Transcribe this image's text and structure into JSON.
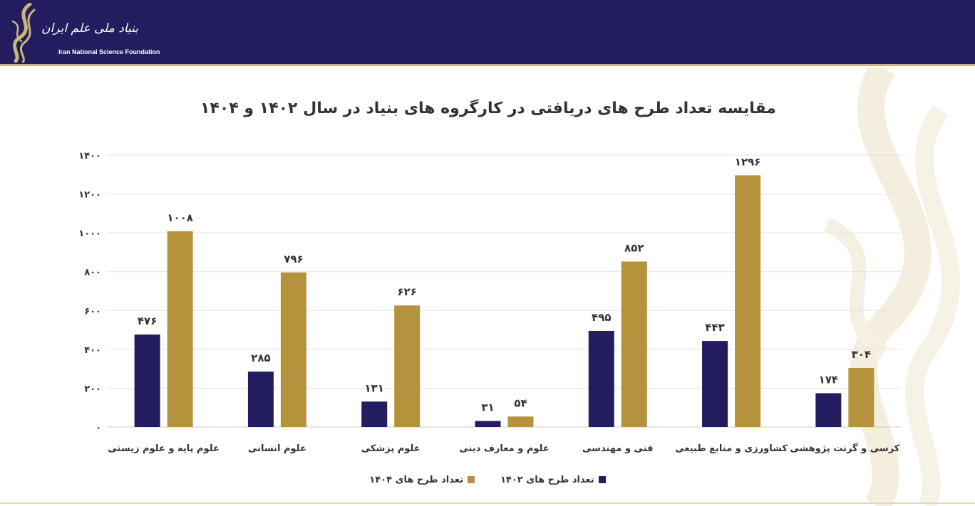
{
  "header": {
    "logo_fa": "بنیاد ملی علم ایران",
    "logo_en": "Iran National Science Foundation",
    "bg_color": "#231c5e",
    "accent_color": "#c9b679"
  },
  "chart_data": {
    "type": "bar",
    "title": "مقایسه تعداد طرح های دریافتی در کارگروه های بنیاد در سال ۱۴۰۲ و ۱۴۰۴",
    "xlabel": "",
    "ylabel": "",
    "ylim": [
      0,
      1400
    ],
    "yticks": [
      0,
      200,
      400,
      600,
      800,
      1000,
      1200,
      1400
    ],
    "ytick_labels": [
      "۰",
      "۲۰۰",
      "۴۰۰",
      "۶۰۰",
      "۸۰۰",
      "۱۰۰۰",
      "۱۲۰۰",
      "۱۴۰۰"
    ],
    "grid": true,
    "legend_position": "bottom",
    "categories": [
      "علوم پایه و علوم زیستی",
      "علوم انسانی",
      "علوم پزشکی",
      "علوم و معارف دینی",
      "فنی و مهندسی",
      "کشاورزی و منابع طبیعی",
      "کرسی و گرنت پژوهشی"
    ],
    "series": [
      {
        "name": "تعداد طرح های ۱۴۰۲",
        "color": "#231c5e",
        "values": [
          476,
          285,
          131,
          31,
          495,
          443,
          174
        ],
        "labels": [
          "۴۷۶",
          "۲۸۵",
          "۱۳۱",
          "۳۱",
          "۴۹۵",
          "۴۴۳",
          "۱۷۴"
        ]
      },
      {
        "name": "تعداد طرح های ۱۴۰۴",
        "color": "#b5923c",
        "values": [
          1008,
          796,
          626,
          54,
          852,
          1296,
          304
        ],
        "labels": [
          "۱۰۰۸",
          "۷۹۶",
          "۶۲۶",
          "۵۴",
          "۸۵۲",
          "۱۲۹۶",
          "۳۰۴"
        ]
      }
    ]
  }
}
